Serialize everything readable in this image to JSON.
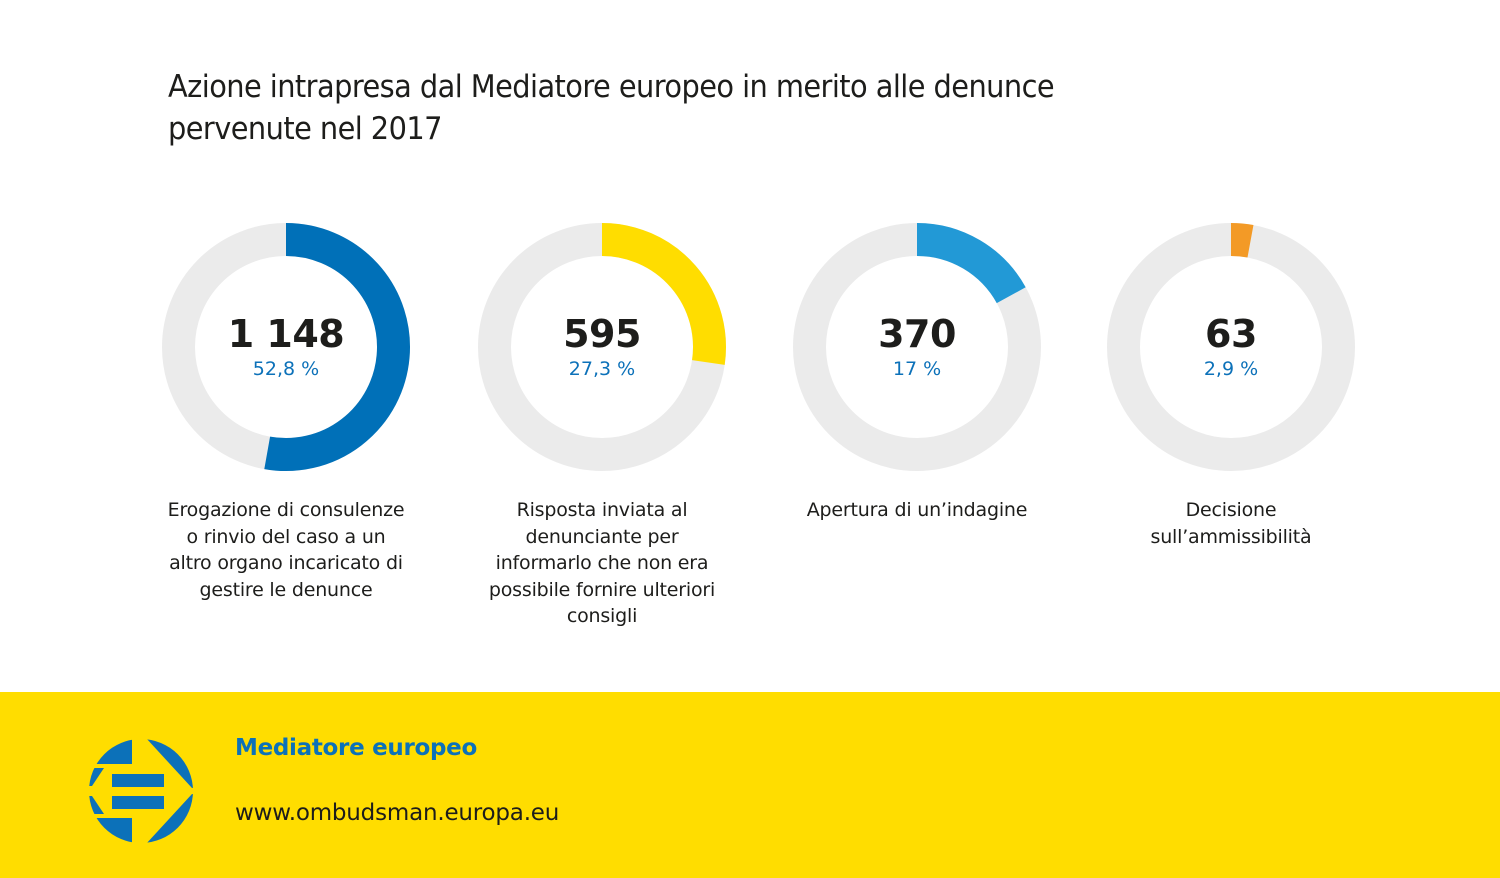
{
  "title": {
    "line1": "Azione intrapresa dal Mediatore europeo in merito alle denunce",
    "line2": "pervenute nel 2017"
  },
  "colors": {
    "track": "#ebebeb",
    "text": "#1d1d1b",
    "percent": "#0c71b9",
    "footer_bg": "#ffdd00",
    "logo": "#0c71b9"
  },
  "chart_data": {
    "type": "pie",
    "title": "Azione intrapresa dal Mediatore europeo in merito alle denunce pervenute nel 2017",
    "total_implied": 2176,
    "items": [
      {
        "value": 1148,
        "value_label": "1 148",
        "percent": 52.8,
        "percent_label": "52,8 %",
        "color": "#0070b8",
        "caption_lines": [
          "Erogazione di consulenze",
          "o rinvio del caso a un",
          "altro organo incaricato di",
          "gestire le denunce"
        ]
      },
      {
        "value": 595,
        "value_label": "595",
        "percent": 27.3,
        "percent_label": "27,3 %",
        "color": "#ffdd00",
        "caption_lines": [
          "Risposta inviata al",
          "denunciante per",
          "informarlo che non era",
          "possibile fornire ulteriori",
          "consigli"
        ]
      },
      {
        "value": 370,
        "value_label": "370",
        "percent": 17,
        "percent_label": "17 %",
        "color": "#2299d6",
        "caption_lines": [
          "Apertura di un’indagine"
        ]
      },
      {
        "value": 63,
        "value_label": "63",
        "percent": 2.9,
        "percent_label": "2,9 %",
        "color": "#f39a26",
        "caption_lines": [
          "Decisione",
          "sull’ammissibilità"
        ]
      }
    ]
  },
  "footer": {
    "org_name": "Mediatore europeo",
    "url": "www.ombudsman.europa.eu",
    "logo_icon": "european-ombudsman-logo-icon"
  }
}
